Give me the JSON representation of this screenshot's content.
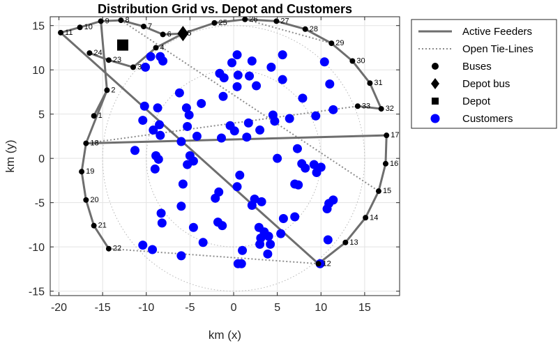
{
  "chart_data": {
    "type": "scatter",
    "title": "Distribution Grid vs. Depot and Customers",
    "xlabel": "km (x)",
    "ylabel": "km (y)",
    "xlim": [
      -21,
      19
    ],
    "ylim": [
      -15.5,
      16
    ],
    "xticks": [
      -20,
      -15,
      -10,
      -5,
      0,
      5,
      10,
      15
    ],
    "yticks": [
      -15,
      -10,
      -5,
      0,
      5,
      10,
      15
    ],
    "grid": true,
    "legend_position": "outside-top-right",
    "legend": [
      {
        "label": "Active Feeders",
        "kind": "line-solid",
        "color": "#6e6e6e"
      },
      {
        "label": "Open Tie-Lines",
        "kind": "line-dotted",
        "color": "#8c8c8c"
      },
      {
        "label": "Buses",
        "kind": "circle",
        "color": "#000000"
      },
      {
        "label": "Depot bus",
        "kind": "diamond",
        "color": "#000000"
      },
      {
        "label": "Depot",
        "kind": "square",
        "color": "#000000"
      },
      {
        "label": "Customers",
        "kind": "circle",
        "color": "#0000ff"
      }
    ],
    "colors": {
      "feeder": "#6e6e6e",
      "tie": "#8c8c8c",
      "bus": "#000000",
      "customer": "#0000ff",
      "ring": "#b4b4b4"
    },
    "rings": [
      {
        "cx": 0,
        "cy": 0,
        "r": 10
      },
      {
        "cx": 0,
        "cy": 0,
        "r": 15
      }
    ],
    "buses": [
      {
        "id": "1",
        "x": -16,
        "y": 4.8
      },
      {
        "id": "2",
        "x": -14.5,
        "y": 7.7
      },
      {
        "id": "3",
        "x": -11.5,
        "y": 10.3
      },
      {
        "id": "4",
        "x": -8.9,
        "y": 12.5
      },
      {
        "id": "5",
        "x": -5.8,
        "y": 14.1
      },
      {
        "id": "6",
        "x": -8.1,
        "y": 14.0
      },
      {
        "id": "7",
        "x": -10.3,
        "y": 14.9
      },
      {
        "id": "8",
        "x": -12.9,
        "y": 15.6
      },
      {
        "id": "9",
        "x": -15.2,
        "y": 15.5
      },
      {
        "id": "10",
        "x": -17.6,
        "y": 14.8
      },
      {
        "id": "11",
        "x": -19.8,
        "y": 14.2
      },
      {
        "id": "12",
        "x": 9.7,
        "y": -11.9
      },
      {
        "id": "13",
        "x": 12.8,
        "y": -9.5
      },
      {
        "id": "14",
        "x": 15.1,
        "y": -6.7
      },
      {
        "id": "15",
        "x": 16.6,
        "y": -3.7
      },
      {
        "id": "16",
        "x": 17.4,
        "y": -0.6
      },
      {
        "id": "17",
        "x": 17.5,
        "y": 2.6
      },
      {
        "id": "18",
        "x": -16.9,
        "y": 1.7
      },
      {
        "id": "19",
        "x": -17.4,
        "y": -1.5
      },
      {
        "id": "20",
        "x": -16.9,
        "y": -4.7
      },
      {
        "id": "21",
        "x": -16.0,
        "y": -7.6
      },
      {
        "id": "22",
        "x": -14.3,
        "y": -10.2
      },
      {
        "id": "23",
        "x": -14.3,
        "y": 11.1
      },
      {
        "id": "24",
        "x": -16.5,
        "y": 11.9
      },
      {
        "id": "25",
        "x": -2.2,
        "y": 15.3
      },
      {
        "id": "26",
        "x": 1.3,
        "y": 15.7
      },
      {
        "id": "27",
        "x": 4.9,
        "y": 15.5
      },
      {
        "id": "28",
        "x": 8.2,
        "y": 14.6
      },
      {
        "id": "29",
        "x": 11.2,
        "y": 13.0
      },
      {
        "id": "30",
        "x": 13.6,
        "y": 11.0
      },
      {
        "id": "31",
        "x": 15.6,
        "y": 8.5
      },
      {
        "id": "32",
        "x": 16.9,
        "y": 5.6
      },
      {
        "id": "33",
        "x": 14.2,
        "y": 5.9
      }
    ],
    "depot": {
      "x": -12.7,
      "y": 12.8
    },
    "depot_bus": "5",
    "active_feeders": [
      [
        "5",
        "6"
      ],
      [
        "6",
        "7"
      ],
      [
        "7",
        "8"
      ],
      [
        "8",
        "9"
      ],
      [
        "9",
        "10"
      ],
      [
        "10",
        "11"
      ],
      [
        "11",
        "12"
      ],
      [
        "9",
        "2"
      ],
      [
        "2",
        "1"
      ],
      [
        "2",
        "18"
      ],
      [
        "18",
        "17"
      ],
      [
        "17",
        "16"
      ],
      [
        "16",
        "15"
      ],
      [
        "15",
        "14"
      ],
      [
        "14",
        "13"
      ],
      [
        "13",
        "12"
      ],
      [
        "18",
        "19"
      ],
      [
        "19",
        "20"
      ],
      [
        "20",
        "21"
      ],
      [
        "21",
        "22"
      ],
      [
        "3",
        "23"
      ],
      [
        "23",
        "24"
      ],
      [
        "5",
        "25"
      ],
      [
        "25",
        "26"
      ],
      [
        "26",
        "27"
      ],
      [
        "27",
        "28"
      ],
      [
        "28",
        "29"
      ],
      [
        "29",
        "30"
      ],
      [
        "30",
        "31"
      ],
      [
        "31",
        "32"
      ],
      [
        "32",
        "33"
      ],
      [
        "5",
        "4"
      ],
      [
        "4",
        "3"
      ]
    ],
    "tie_lines": [
      [
        "8",
        "15"
      ],
      [
        "22",
        "12"
      ],
      [
        "26",
        "29"
      ],
      [
        "18",
        "33"
      ]
    ],
    "customers": [
      {
        "x": 0.4,
        "y": 11.7
      },
      {
        "x": 5.6,
        "y": 11.7
      },
      {
        "x": 2.1,
        "y": 11.0
      },
      {
        "x": 10.4,
        "y": 10.9
      },
      {
        "x": -9.5,
        "y": 11.5
      },
      {
        "x": -8.4,
        "y": 11.5
      },
      {
        "x": -8.1,
        "y": 11.0
      },
      {
        "x": -10.1,
        "y": 10.3
      },
      {
        "x": -0.2,
        "y": 10.8
      },
      {
        "x": 4.3,
        "y": 10.3
      },
      {
        "x": -1.6,
        "y": 9.6
      },
      {
        "x": -1.1,
        "y": 9.1
      },
      {
        "x": 0.5,
        "y": 9.4
      },
      {
        "x": 1.8,
        "y": 9.3
      },
      {
        "x": 5.6,
        "y": 8.9
      },
      {
        "x": 11.0,
        "y": 8.4
      },
      {
        "x": 0.4,
        "y": 8.1
      },
      {
        "x": 2.6,
        "y": 8.2
      },
      {
        "x": -6.2,
        "y": 7.4
      },
      {
        "x": -1.2,
        "y": 7.0
      },
      {
        "x": 7.9,
        "y": 6.8
      },
      {
        "x": -10.2,
        "y": 5.9
      },
      {
        "x": -8.7,
        "y": 5.7
      },
      {
        "x": -5.4,
        "y": 5.7
      },
      {
        "x": -3.7,
        "y": 6.2
      },
      {
        "x": -5.1,
        "y": 4.9
      },
      {
        "x": 4.5,
        "y": 4.9
      },
      {
        "x": 6.4,
        "y": 4.5
      },
      {
        "x": 9.4,
        "y": 4.8
      },
      {
        "x": 11.4,
        "y": 5.5
      },
      {
        "x": 4.7,
        "y": 4.2
      },
      {
        "x": -10.4,
        "y": 4.3
      },
      {
        "x": -8.5,
        "y": 3.8
      },
      {
        "x": -9.2,
        "y": 3.2
      },
      {
        "x": -5.3,
        "y": 3.6
      },
      {
        "x": -0.4,
        "y": 3.7
      },
      {
        "x": 1.7,
        "y": 4.0
      },
      {
        "x": 0.1,
        "y": 3.1
      },
      {
        "x": 3.0,
        "y": 3.2
      },
      {
        "x": -8.4,
        "y": 2.6
      },
      {
        "x": -4.2,
        "y": 2.5
      },
      {
        "x": -6.0,
        "y": 1.9
      },
      {
        "x": -1.4,
        "y": 2.3
      },
      {
        "x": 1.5,
        "y": 2.4
      },
      {
        "x": -11.3,
        "y": 0.9
      },
      {
        "x": 7.3,
        "y": 1.1
      },
      {
        "x": -8.9,
        "y": 0.3
      },
      {
        "x": -5.0,
        "y": 0.3
      },
      {
        "x": -8.6,
        "y": -0.1
      },
      {
        "x": 5.0,
        "y": 0.0
      },
      {
        "x": -5.3,
        "y": -0.7
      },
      {
        "x": -4.6,
        "y": -0.3
      },
      {
        "x": 7.8,
        "y": -0.6
      },
      {
        "x": 9.2,
        "y": -0.7
      },
      {
        "x": 10.0,
        "y": -1.0
      },
      {
        "x": -9.0,
        "y": -1.2
      },
      {
        "x": 8.2,
        "y": -1.1
      },
      {
        "x": 9.5,
        "y": -1.6
      },
      {
        "x": 0.7,
        "y": -1.9
      },
      {
        "x": -5.8,
        "y": -2.9
      },
      {
        "x": 7.0,
        "y": -2.9
      },
      {
        "x": 7.4,
        "y": -3.0
      },
      {
        "x": 0.4,
        "y": -3.2
      },
      {
        "x": -1.7,
        "y": -3.8
      },
      {
        "x": -2.1,
        "y": -4.5
      },
      {
        "x": 2.4,
        "y": -4.6
      },
      {
        "x": 3.2,
        "y": -4.9
      },
      {
        "x": 11.4,
        "y": -4.7
      },
      {
        "x": 10.9,
        "y": -5.1
      },
      {
        "x": -6.0,
        "y": -5.4
      },
      {
        "x": 2.1,
        "y": -5.3
      },
      {
        "x": 10.7,
        "y": -5.7
      },
      {
        "x": -8.3,
        "y": -6.2
      },
      {
        "x": 5.7,
        "y": -6.8
      },
      {
        "x": 7.0,
        "y": -6.6
      },
      {
        "x": -8.2,
        "y": -7.3
      },
      {
        "x": -1.8,
        "y": -7.2
      },
      {
        "x": -1.3,
        "y": -7.6
      },
      {
        "x": -4.6,
        "y": -7.8
      },
      {
        "x": 2.9,
        "y": -7.8
      },
      {
        "x": 3.5,
        "y": -8.3
      },
      {
        "x": 5.4,
        "y": -8.5
      },
      {
        "x": 4.0,
        "y": -8.8
      },
      {
        "x": 3.1,
        "y": -9.0
      },
      {
        "x": -3.5,
        "y": -9.5
      },
      {
        "x": 3.0,
        "y": -9.7
      },
      {
        "x": 4.2,
        "y": -9.7
      },
      {
        "x": 10.8,
        "y": -9.2
      },
      {
        "x": -10.4,
        "y": -9.8
      },
      {
        "x": -9.3,
        "y": -10.3
      },
      {
        "x": 1.0,
        "y": -10.4
      },
      {
        "x": 3.9,
        "y": -10.8
      },
      {
        "x": -6.0,
        "y": -11.0
      },
      {
        "x": 0.5,
        "y": -11.9
      },
      {
        "x": 0.9,
        "y": -11.9
      },
      {
        "x": 9.9,
        "y": -11.9
      }
    ]
  }
}
